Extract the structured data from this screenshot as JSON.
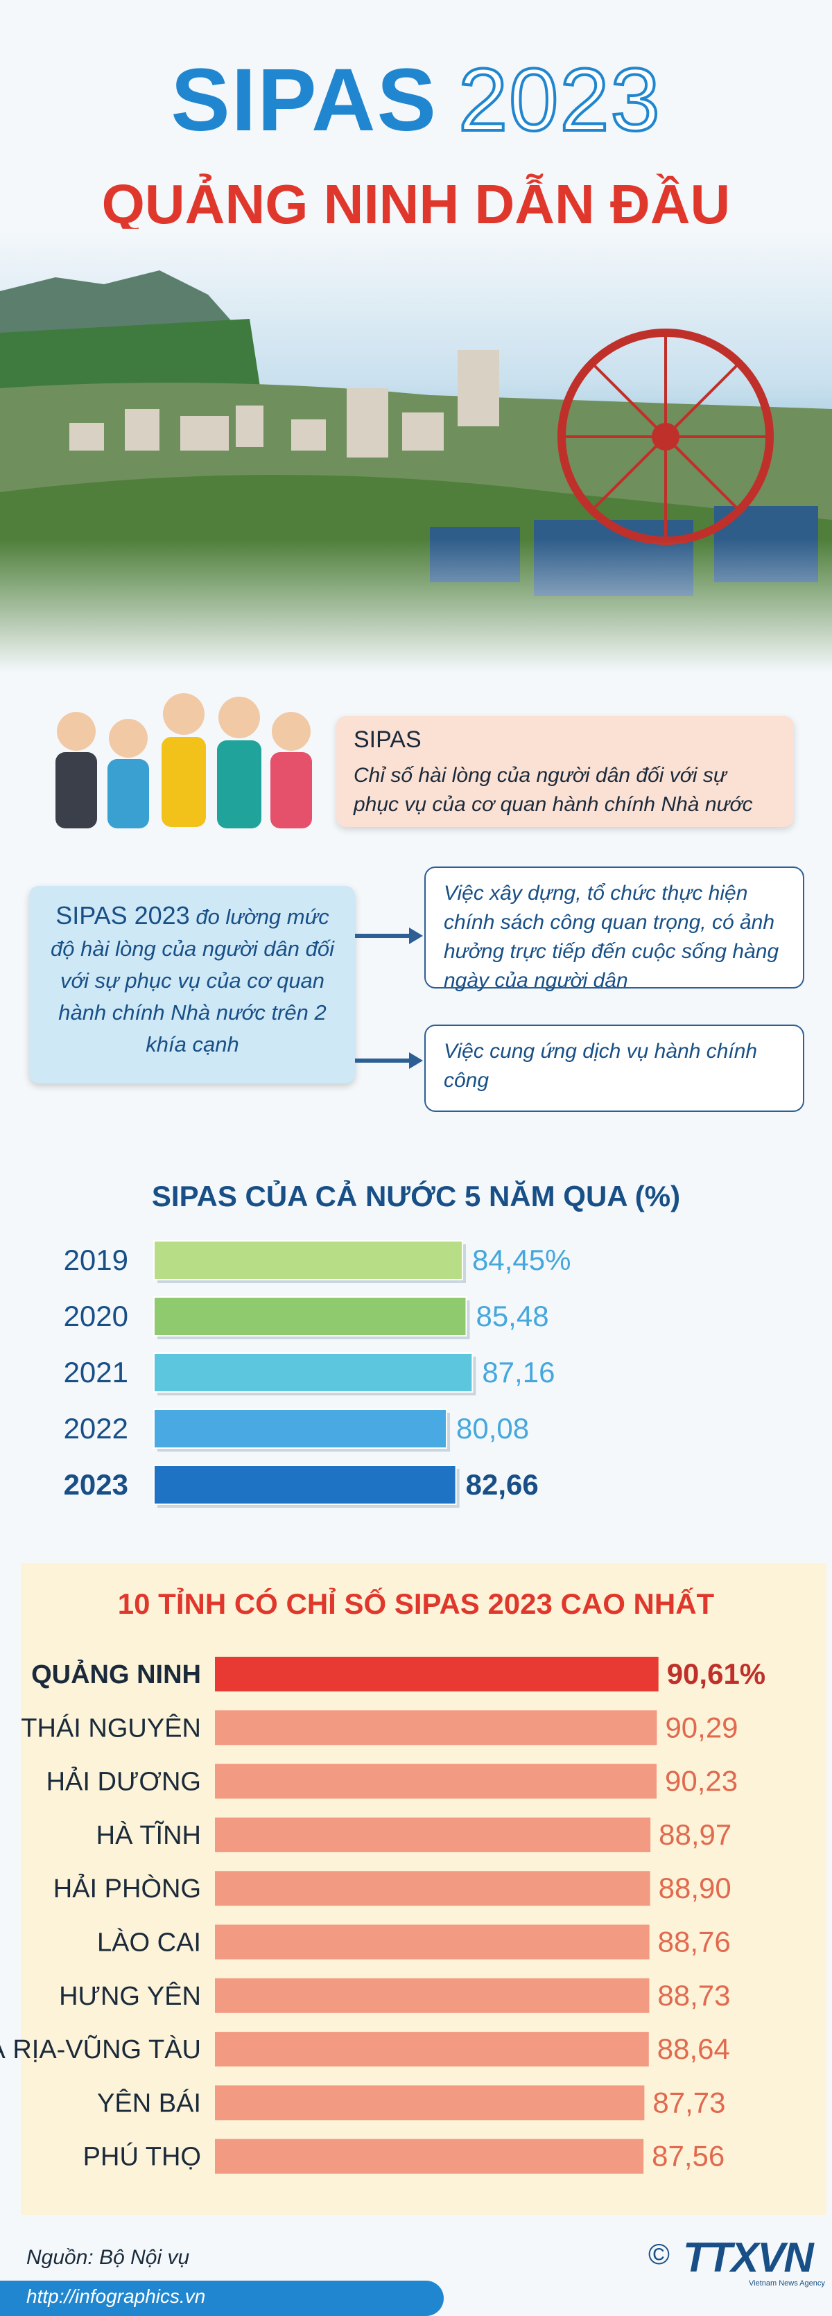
{
  "header": {
    "title_part1": "SIPAS",
    "title_part2": "2023",
    "subtitle": "QUẢNG NINH DẪN ĐẦU"
  },
  "definition": {
    "title": "SIPAS",
    "text": "Chỉ số hài lòng của người dân đối với sự phục vụ của cơ quan hành chính Nhà nước"
  },
  "measure": {
    "lead": "SIPAS 2023",
    "text": "đo lường mức độ hài lòng của người dân đối với sự phục vụ của cơ quan hành chính Nhà nước trên 2 khía cạnh",
    "aspect1": "Việc xây dựng, tổ chức thực hiện chính sách công quan trọng, có ảnh hưởng trực tiếp đến cuộc sống hàng ngày của người dân",
    "aspect2": "Việc cung ứng dịch vụ hành chính công"
  },
  "chart_data": [
    {
      "type": "bar",
      "orientation": "horizontal",
      "title": "SIPAS CỦA CẢ NƯỚC 5 NĂM QUA (%)",
      "categories": [
        "2019",
        "2020",
        "2021",
        "2022",
        "2023"
      ],
      "values": [
        84.45,
        85.48,
        87.16,
        80.08,
        82.66
      ],
      "value_labels": [
        "84,45%",
        "85,48",
        "87,16",
        "80,08",
        "82,66"
      ],
      "colors": [
        "#b7dd86",
        "#8fcb6e",
        "#5cc6de",
        "#48a9e3",
        "#1f73c4"
      ],
      "highlight": "2023"
    },
    {
      "type": "bar",
      "orientation": "horizontal",
      "title": "10 TỈNH CÓ CHỈ SỐ SIPAS 2023 CAO NHẤT",
      "categories": [
        "QUẢNG NINH",
        "THÁI NGUYÊN",
        "HẢI DƯƠNG",
        "HÀ TĨNH",
        "HẢI PHÒNG",
        "LÀO CAI",
        "HƯNG YÊN",
        "BÀ RỊA-VŨNG TÀU",
        "YÊN BÁI",
        "PHÚ THỌ"
      ],
      "values": [
        90.61,
        90.29,
        90.23,
        88.97,
        88.9,
        88.76,
        88.73,
        88.64,
        87.73,
        87.56
      ],
      "value_labels": [
        "90,61%",
        "90,29",
        "90,23",
        "88,97",
        "88,90",
        "88,76",
        "88,73",
        "88,64",
        "87,73",
        "87,56"
      ],
      "colors": {
        "highlight": "#e83a33",
        "normal": "#f39a82"
      },
      "highlight": "QUẢNG NINH"
    }
  ],
  "footer": {
    "source": "Nguồn: Bộ Nội vụ",
    "url": "http://infographics.vn",
    "copyright": "©",
    "logo": "TTXVN",
    "logo_sub": "Vietnam News Agency"
  },
  "colors": {
    "blue": "#1f86cf",
    "dark_blue": "#174f86",
    "red": "#e0372c"
  },
  "icons": [
    "copyright-icon",
    "arrow-right-icon"
  ]
}
